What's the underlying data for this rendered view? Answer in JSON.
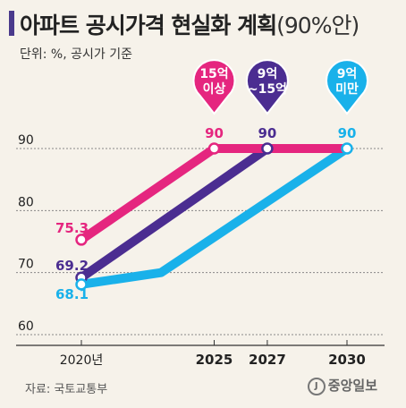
{
  "header": {
    "title": "아파트 공시가격 현실화 계획",
    "title_suffix": "(90%안)",
    "subtitle": "단위: %, 공시가 기준"
  },
  "footer": {
    "source": "자료: 국토교통부",
    "logo_text": "중앙일보",
    "logo_mark": "J"
  },
  "chart_data": {
    "type": "line",
    "title": "아파트 공시가격 현실화 계획(90%안)",
    "ylabel": "",
    "xlabel": "",
    "ylim": [
      60,
      90
    ],
    "xlim": [
      2020,
      2030
    ],
    "y_ticks": [
      90,
      80,
      70,
      60
    ],
    "x_ticks": [
      {
        "value": 2020,
        "label": "2020년",
        "bold": false
      },
      {
        "value": 2025,
        "label": "2025",
        "bold": true
      },
      {
        "value": 2027,
        "label": "2027",
        "bold": true
      },
      {
        "value": 2030,
        "label": "2030",
        "bold": true
      }
    ],
    "series": [
      {
        "name": "15억 이상",
        "name_lines": [
          "15억",
          "이상"
        ],
        "color": "#e5267f",
        "points": [
          [
            2020,
            75.3
          ],
          [
            2025,
            90
          ],
          [
            2030,
            90
          ]
        ],
        "start_label": "75.3",
        "end_label": "90",
        "end_label_year": 2025
      },
      {
        "name": "9억 ~15억",
        "name_lines": [
          "9억",
          "~15억"
        ],
        "color": "#4b2d91",
        "points": [
          [
            2020,
            69.2
          ],
          [
            2027,
            90
          ],
          [
            2030,
            90
          ]
        ],
        "start_label": "69.2",
        "end_label": "90",
        "end_label_year": 2027
      },
      {
        "name": "9억 미만",
        "name_lines": [
          "9억",
          "미만"
        ],
        "color": "#19b1ea",
        "points": [
          [
            2020,
            68.1
          ],
          [
            2023,
            70
          ],
          [
            2030,
            90
          ]
        ],
        "start_label": "68.1",
        "end_label": "90",
        "end_label_year": 2030
      }
    ],
    "grid": true,
    "legend": "top-right"
  }
}
